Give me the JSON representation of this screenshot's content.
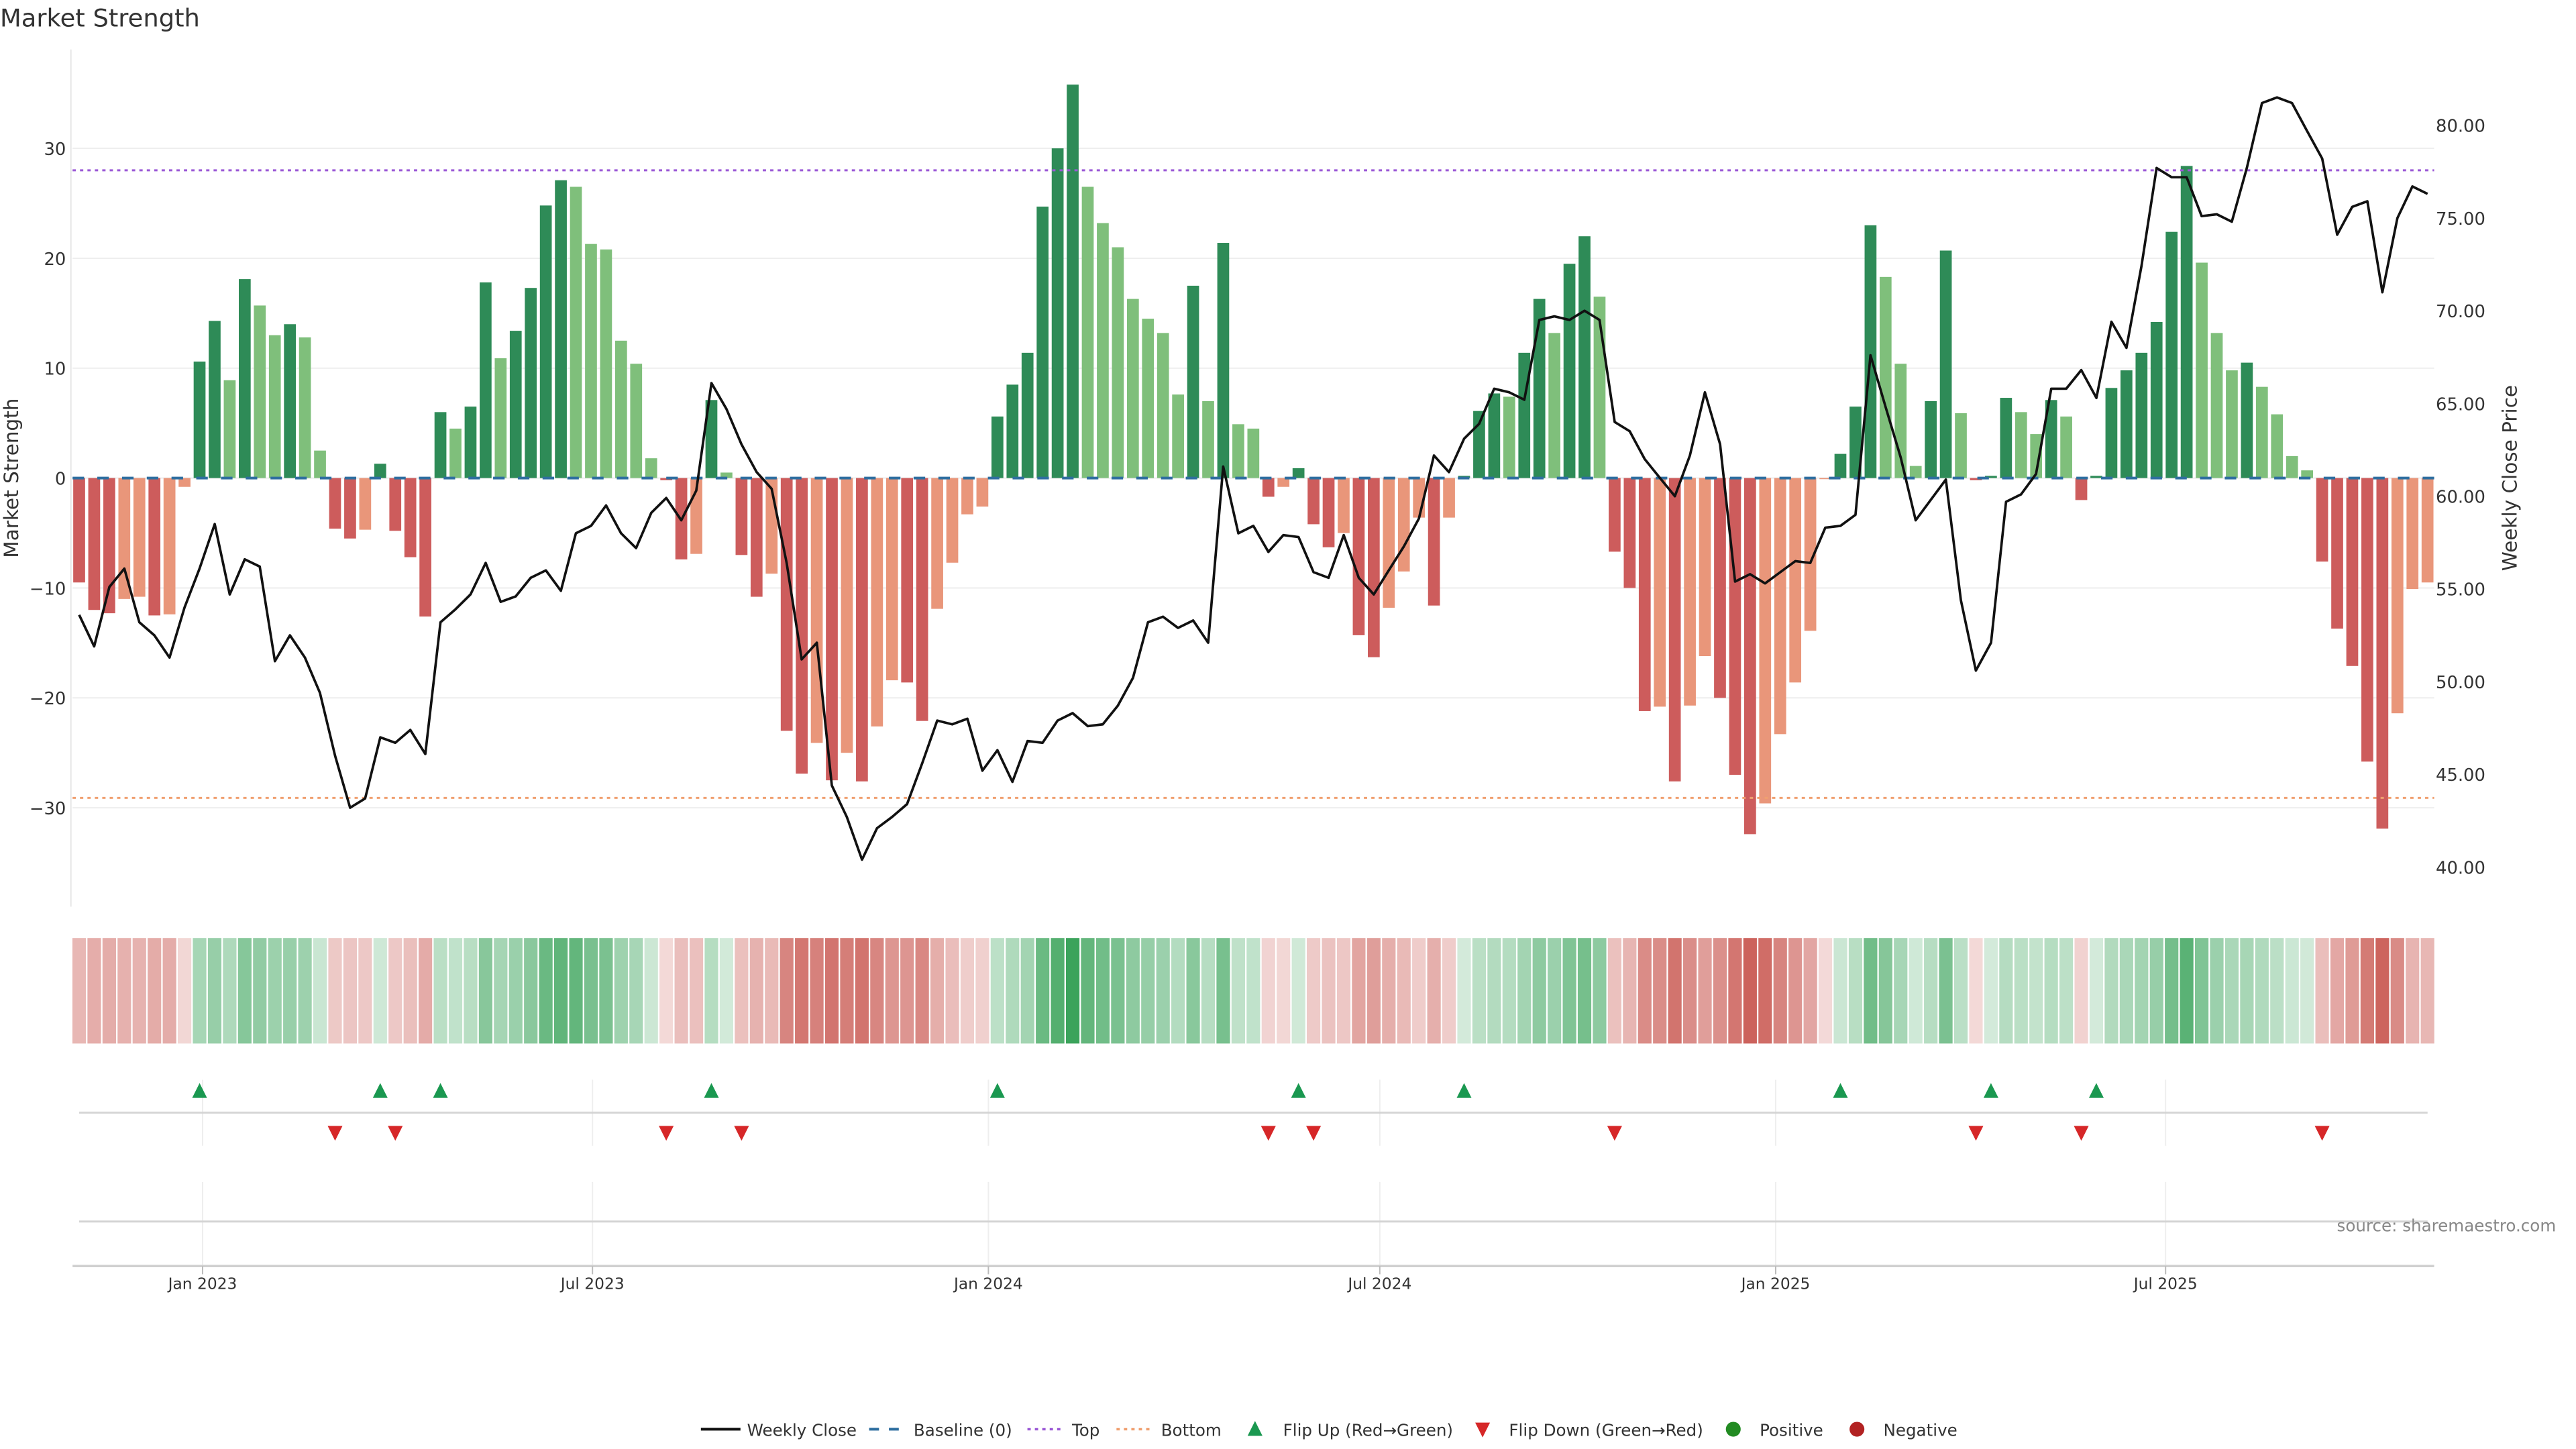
{
  "title": "Market Strength",
  "source": "source: sharemaestro.com",
  "colors": {
    "pos_rising": "#2e8b57",
    "pos_falling": "#7fbf7b",
    "neg_falling": "#cd5c5c",
    "neg_rising": "#e9967a",
    "baseline": "#2f6fa0",
    "top": "#9b59d6",
    "bottom": "#f0a070",
    "flip_up": "#1a9850",
    "flip_down": "#d62728",
    "positive": "#228b22",
    "negative": "#b22222",
    "heat_green": "#3aa35a",
    "heat_red": "#c8554e"
  },
  "legend": [
    {
      "key": "weekly-close",
      "label": "Weekly Close"
    },
    {
      "key": "baseline",
      "label": "Baseline (0)"
    },
    {
      "key": "top",
      "label": "Top"
    },
    {
      "key": "bottom",
      "label": "Bottom"
    },
    {
      "key": "flip-up",
      "label": "Flip Up (Red→Green)"
    },
    {
      "key": "flip-down",
      "label": "Flip Down (Green→Red)"
    },
    {
      "key": "positive",
      "label": "Positive"
    },
    {
      "key": "negative",
      "label": "Negative"
    }
  ],
  "chart_data": {
    "type": "bar",
    "title": "Market Strength",
    "ylabel": "Market Strength",
    "y2label": "Weekly Close Price",
    "ylim": [
      -39,
      39
    ],
    "y2lim": [
      37.9,
      84.1
    ],
    "y_ticks": [
      "30",
      "20",
      "10",
      "0",
      "−10",
      "−20",
      "−30"
    ],
    "y_tick_values": [
      30,
      20,
      10,
      0,
      -10,
      -20,
      -30
    ],
    "y2_ticks": [
      "80.00",
      "75.00",
      "70.00",
      "65.00",
      "60.00",
      "55.00",
      "50.00",
      "45.00",
      "40.00"
    ],
    "y2_tick_values": [
      80,
      75,
      70,
      65,
      60,
      55,
      50,
      45,
      40
    ],
    "x_ticks": [
      {
        "label": "Jan 2023",
        "week": 8.2
      },
      {
        "label": "Jul 2023",
        "week": 34.1
      },
      {
        "label": "Jan 2024",
        "week": 60.4
      },
      {
        "label": "Jul 2024",
        "week": 86.4
      },
      {
        "label": "Jan 2025",
        "week": 112.7
      },
      {
        "label": "Jul 2025",
        "week": 138.6
      }
    ],
    "grid": true,
    "legend_position": "bottom",
    "top_threshold": 28.0,
    "bottom_threshold": -29.1,
    "strength": [
      -9.5,
      -12,
      -12.3,
      -11,
      -10.8,
      -12.5,
      -12.4,
      -0.8,
      10.6,
      14.3,
      8.9,
      18.1,
      15.7,
      13,
      14,
      12.8,
      2.5,
      -4.6,
      -5.5,
      -4.7,
      1.3,
      -4.8,
      -7.2,
      -12.6,
      6,
      4.5,
      6.5,
      17.8,
      10.9,
      13.4,
      17.3,
      24.8,
      27.1,
      26.5,
      21.3,
      20.8,
      12.5,
      10.4,
      1.8,
      -0.2,
      -7.4,
      -6.9,
      7.1,
      0.5,
      -7,
      -10.8,
      -8.7,
      -23,
      -26.9,
      -24.1,
      -27.5,
      -25,
      -27.6,
      -22.6,
      -18.4,
      -18.6,
      -22.1,
      -11.9,
      -7.7,
      -3.3,
      -2.6,
      5.6,
      8.5,
      11.4,
      24.7,
      30,
      35.8,
      26.5,
      23.2,
      21,
      16.3,
      14.5,
      13.2,
      7.6,
      17.5,
      7,
      21.4,
      4.9,
      4.5,
      -1.7,
      -0.8,
      0.9,
      -4.2,
      -6.3,
      -5,
      -14.3,
      -16.3,
      -11.8,
      -8.5,
      -3.6,
      -11.6,
      -3.6,
      0.2,
      6.1,
      7.7,
      7.4,
      11.4,
      16.3,
      13.2,
      19.5,
      22,
      16.5,
      -6.7,
      -10,
      -21.2,
      -20.8,
      -27.6,
      -20.7,
      -16.2,
      -20,
      -27,
      -32.4,
      -29.6,
      -23.3,
      -18.6,
      -13.9,
      -0.1,
      2.2,
      6.5,
      23,
      18.3,
      10.4,
      1.1,
      7,
      20.7,
      5.9,
      -0.2,
      0.2,
      7.3,
      6,
      4,
      7.1,
      5.6,
      -2,
      0.2,
      8.2,
      9.8,
      11.4,
      14.2,
      22.4,
      28.4,
      19.6,
      13.2,
      9.8,
      10.5,
      8.3,
      5.8,
      2,
      0.7,
      -7.6,
      -13.7,
      -17.1,
      -25.8,
      -31.9,
      -21.4,
      -10.1,
      -9.5
    ],
    "weekly_close": [
      53.6,
      51.9,
      55.1,
      56.1,
      53.2,
      52.5,
      51.3,
      54,
      56.1,
      58.5,
      54.7,
      56.6,
      56.2,
      51.1,
      52.5,
      51.3,
      49.4,
      46,
      43.2,
      43.7,
      47,
      46.7,
      47.4,
      46.1,
      53.2,
      53.9,
      54.7,
      56.4,
      54.3,
      54.6,
      55.6,
      56,
      54.9,
      58,
      58.4,
      59.5,
      58,
      57.2,
      59.1,
      59.9,
      58.7,
      60.3,
      66.1,
      64.7,
      62.8,
      61.3,
      60.4,
      56.4,
      51.2,
      52.1,
      44.4,
      42.7,
      40.4,
      42.1,
      42.7,
      43.4,
      45.6,
      47.9,
      47.7,
      48,
      45.2,
      46.3,
      44.6,
      46.8,
      46.7,
      47.9,
      48.3,
      47.6,
      47.7,
      48.7,
      50.2,
      53.2,
      53.5,
      52.9,
      53.3,
      52.1,
      61.6,
      58,
      58.4,
      57,
      57.9,
      57.8,
      55.9,
      55.6,
      57.9,
      55.6,
      54.7,
      56,
      57.3,
      58.8,
      62.2,
      61.3,
      63.1,
      63.9,
      65.8,
      65.6,
      65.2,
      69.5,
      69.7,
      69.5,
      70,
      69.5,
      64,
      63.5,
      62,
      61,
      60,
      62.2,
      65.6,
      62.8,
      55.4,
      55.8,
      55.3,
      55.9,
      56.5,
      56.4,
      58.3,
      58.4,
      59,
      67.6,
      64.8,
      62.1,
      58.7,
      59.8,
      60.9,
      54.4,
      50.6,
      52.1,
      59.7,
      60.1,
      61.2,
      65.8,
      65.8,
      66.8,
      65.3,
      69.4,
      68,
      72.4,
      77.7,
      77.2,
      77.2,
      75.1,
      75.2,
      74.8,
      77.7,
      81.2,
      81.5,
      81.2,
      79.7,
      78.2,
      74.1,
      75.6,
      75.9,
      71,
      75,
      76.7,
      76.3
    ],
    "flip_up_weeks": [
      9,
      21,
      25,
      43,
      62,
      82,
      93,
      118,
      128,
      135
    ],
    "flip_down_weeks": [
      18,
      22,
      40,
      45,
      80,
      83,
      103,
      127,
      134,
      150
    ]
  }
}
